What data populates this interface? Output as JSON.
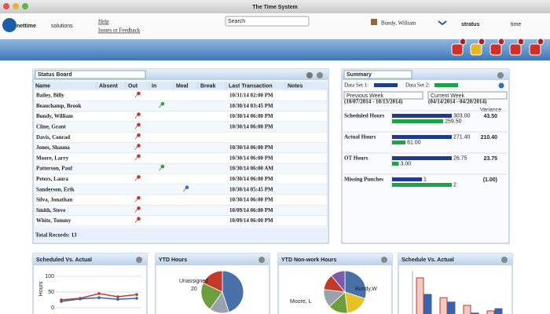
{
  "window": {
    "title": "The Time System"
  },
  "header": {
    "brand_bold": "nettime",
    "brand_light": "solutions",
    "links": [
      "Help",
      "Issues or Feedback"
    ],
    "search_placeholder": "Search",
    "user": "Bundy, William",
    "logo_bold": "stratus",
    "logo_light": "time",
    "badges": [
      "4",
      "0",
      "1",
      "1",
      "2"
    ]
  },
  "status_board": {
    "title": "Status Board",
    "columns": [
      "Name",
      "Absent",
      "Out",
      "In",
      "Meal",
      "Break",
      "Last Transaction",
      "Notes"
    ],
    "rows": [
      {
        "name": "Bailey, Billy",
        "last": "10/31/14 02:00 PM"
      },
      {
        "name": "Beauchamp, Brook",
        "last": "10/30/14 03:45 PM"
      },
      {
        "name": "Bundy, William",
        "last": "10/30/14 06:00 PM"
      },
      {
        "name": "Cline, Grant",
        "last": "10/30/14 06:00 PM"
      },
      {
        "name": "Davis, Conrad"
      },
      {
        "name": "Jones, Shauna",
        "last": "10/30/14 06:00 PM"
      },
      {
        "name": "Moore, Larry",
        "last": "10/30/14 06:00 PM"
      },
      {
        "name": "Patterson, Paul",
        "last": "10/30/14 06:00 AM"
      },
      {
        "name": "Peters, Laura",
        "last": "10/30/14 06:00 PM"
      },
      {
        "name": "Sanderson, Erik",
        "last": "10/30/14 05:45 PM"
      },
      {
        "name": "Silva, Jonathan",
        "last": "10/30/14 06:00 PM"
      },
      {
        "name": "Smith, Steve",
        "last": "10/09/14 06:00 PM"
      },
      {
        "name": "White, Tommy",
        "last": "10/09/14 06:00 PM"
      }
    ],
    "footer": "Total Records: 13"
  },
  "summary": {
    "title": "Summary",
    "set1_label": "Data Set 1:",
    "set2_label": "Data Set 2:",
    "set1_color": "#1f3c88",
    "set2_color": "#1fa34a",
    "set1_period": "Previous Week",
    "set2_period": "Current Week",
    "set1_dates": "(10/07/2014 - 10/13/2014)",
    "set2_dates": "(04/14/2014 - 04/20/2014)",
    "variance_header": "Variance",
    "rows": [
      {
        "label": "Scheduled Hours",
        "values": [
          303,
          259.5
        ],
        "value_labels": [
          "303.00",
          "259.50"
        ],
        "variance": "43.50"
      },
      {
        "label": "Actual Hours",
        "values": [
          271.4,
          61
        ],
        "value_labels": [
          "271.40",
          "61.00"
        ],
        "variance": "210.40"
      },
      {
        "label": "OT Hours",
        "values": [
          26.75,
          3
        ],
        "value_labels": [
          "26.75",
          "3.00"
        ],
        "variance": "23.75"
      },
      {
        "label": "Missing Punches",
        "values": [
          1,
          2
        ],
        "value_labels": [
          "1",
          "2"
        ],
        "variance": "(1.00)"
      }
    ]
  },
  "widgets": [
    {
      "type": "line",
      "title": "Scheduled Vs. Actual",
      "ylabel": "Hours",
      "ylim": [
        0,
        100
      ],
      "yticks": [
        0,
        50,
        100
      ],
      "series": [
        {
          "color": "#c0392b",
          "values": [
            25,
            30,
            45,
            35,
            42
          ]
        },
        {
          "color": "#3a63a8",
          "values": [
            20,
            28,
            32,
            27,
            30
          ]
        }
      ]
    },
    {
      "type": "pie",
      "title": "YTD Hours",
      "values": [
        45,
        15,
        22,
        18
      ],
      "colors": [
        "#4a70a8",
        "#9aa3ab",
        "#6f9c3c",
        "#c0392b"
      ],
      "annotations": [
        "Unassigned",
        "20"
      ]
    },
    {
      "type": "pie",
      "title": "YTD Non-work Hours",
      "values": [
        30,
        18,
        15,
        14,
        12,
        11
      ],
      "colors": [
        "#4a70a8",
        "#e6c229",
        "#6f9c3c",
        "#9aa3ab",
        "#c0392b",
        "#7d5ba6"
      ],
      "annotations": [
        "Bundy,W",
        "Moore, L"
      ]
    },
    {
      "type": "bar",
      "title": "Schedule Vs. Actual",
      "ylim": [
        0,
        50
      ],
      "series": [
        {
          "color": "#c0392b",
          "values": [
            40,
            22,
            15,
            10
          ]
        },
        {
          "color": "#3a63a8",
          "values": [
            25,
            18,
            8,
            12
          ]
        }
      ]
    }
  ]
}
